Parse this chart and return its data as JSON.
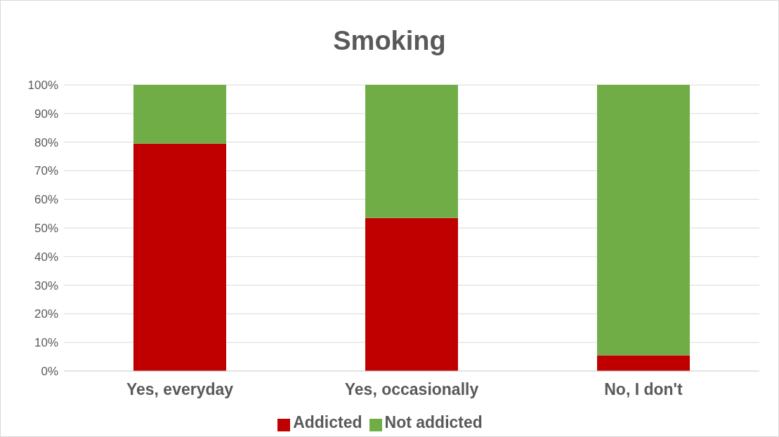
{
  "chart_data": {
    "type": "bar",
    "title": "Smoking",
    "categories": [
      "Yes, everyday",
      "Yes, occasionally",
      "No, I don't"
    ],
    "stacked": true,
    "series": [
      {
        "name": "Addicted",
        "color": "#c00000",
        "values": [
          79.5,
          53.5,
          5.5
        ]
      },
      {
        "name": "Not addicted",
        "color": "#70ad47",
        "values": [
          20.5,
          46.5,
          94.5
        ]
      }
    ],
    "ylim": [
      0,
      100
    ],
    "yticks": [
      {
        "value": 0,
        "label": "0%"
      },
      {
        "value": 10,
        "label": "10%"
      },
      {
        "value": 20,
        "label": "20%"
      },
      {
        "value": 30,
        "label": "30%"
      },
      {
        "value": 40,
        "label": "40%"
      },
      {
        "value": 50,
        "label": "50%"
      },
      {
        "value": 60,
        "label": "60%"
      },
      {
        "value": 70,
        "label": "70%"
      },
      {
        "value": 80,
        "label": "80%"
      },
      {
        "value": 90,
        "label": "90%"
      },
      {
        "value": 100,
        "label": "100%"
      }
    ],
    "grid": "y",
    "legend": "bottom"
  }
}
